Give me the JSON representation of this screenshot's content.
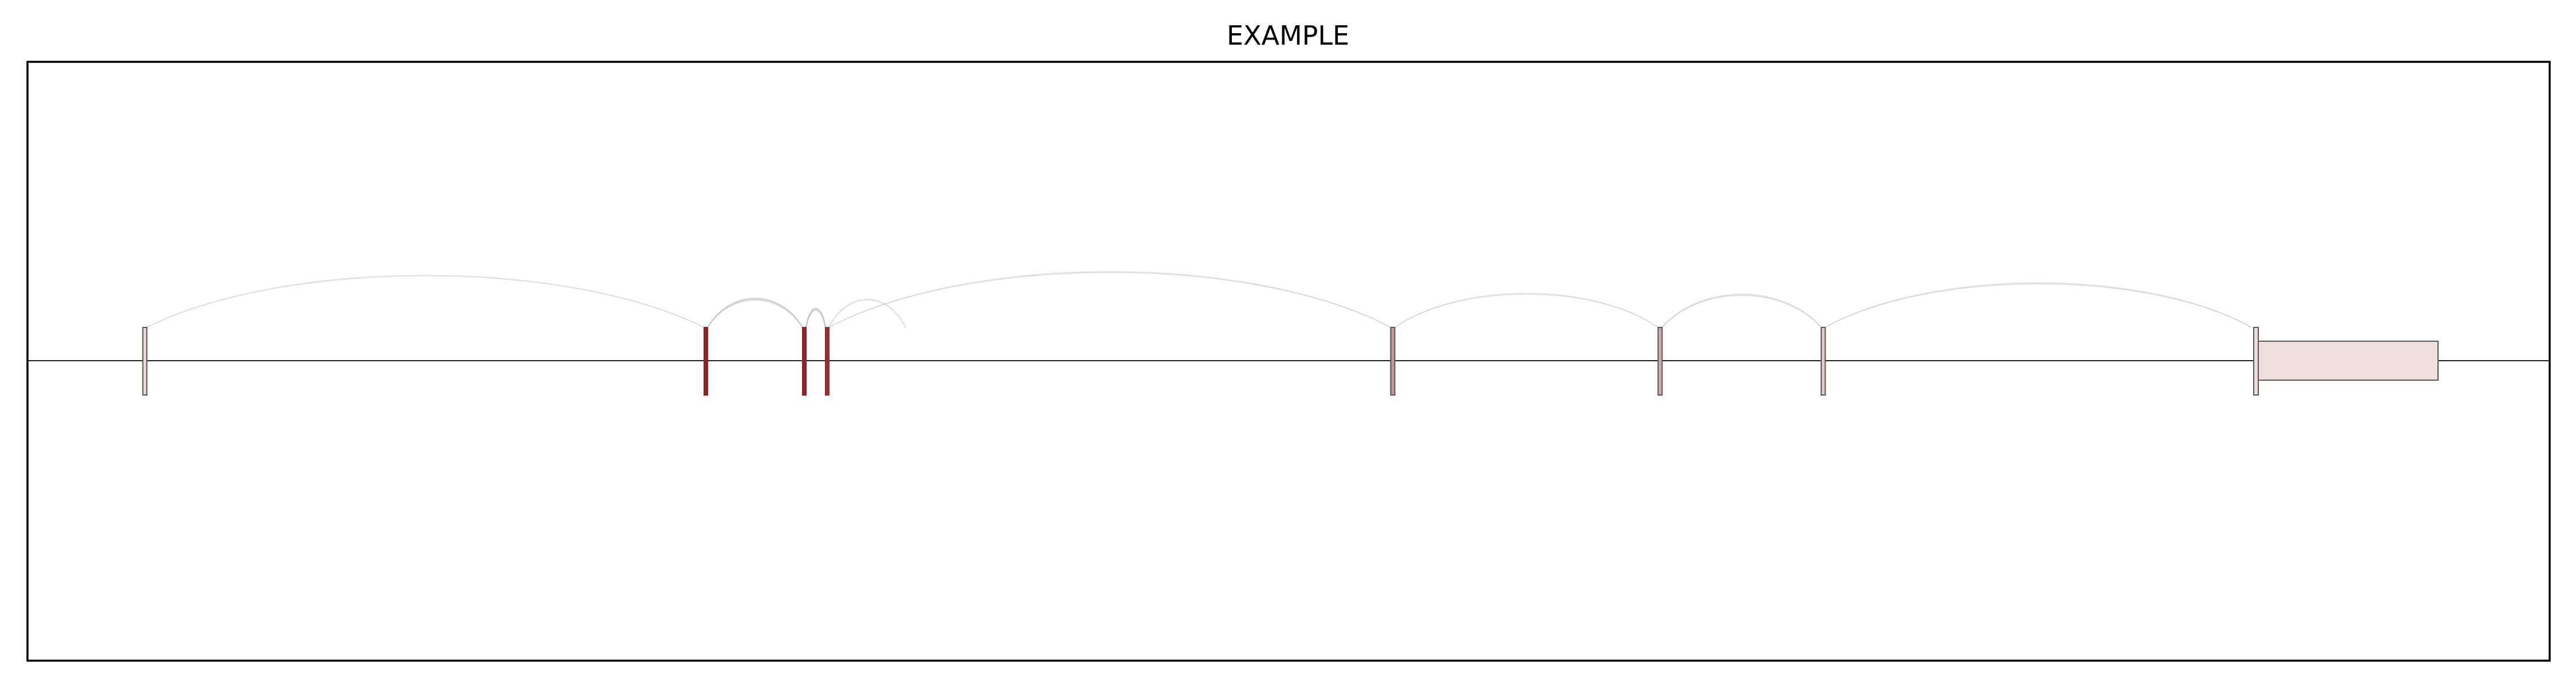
{
  "title": "EXAMPLE",
  "diagram": {
    "type": "splice-junction sashimi plot",
    "exons": [
      {
        "id": "exon-1",
        "intensity": 0.08,
        "kind": "narrow"
      },
      {
        "id": "exon-2",
        "intensity": 0.95,
        "kind": "narrow"
      },
      {
        "id": "exon-3",
        "intensity": 0.95,
        "kind": "narrow"
      },
      {
        "id": "exon-4",
        "intensity": 0.9,
        "kind": "narrow"
      },
      {
        "id": "exon-5",
        "intensity": 0.4,
        "kind": "narrow"
      },
      {
        "id": "exon-6",
        "intensity": 0.3,
        "kind": "narrow"
      },
      {
        "id": "exon-7",
        "intensity": 0.15,
        "kind": "narrow"
      },
      {
        "id": "exon-8",
        "intensity": 0.05,
        "kind": "terminal-block"
      }
    ],
    "junctions": [
      {
        "from": "exon-1",
        "to": "exon-2",
        "weight": 0.2
      },
      {
        "from": "exon-2",
        "to": "exon-3",
        "weight": 0.6
      },
      {
        "from": "exon-3",
        "to": "exon-4",
        "weight": 0.7
      },
      {
        "from": "exon-4",
        "to": "exon-5",
        "weight": 0.25
      },
      {
        "from": "exon-4",
        "to": "exon-5b",
        "weight": 0.2
      },
      {
        "from": "exon-5",
        "to": "exon-6",
        "weight": 0.25
      },
      {
        "from": "exon-6",
        "to": "exon-7",
        "weight": 0.35
      },
      {
        "from": "exon-7",
        "to": "exon-8",
        "weight": 0.3
      }
    ],
    "colors": {
      "exon_high": "#8b1a1a",
      "exon_low": "#f6e8e8",
      "arc": "#bdbdbd",
      "frame": "#000000"
    }
  }
}
